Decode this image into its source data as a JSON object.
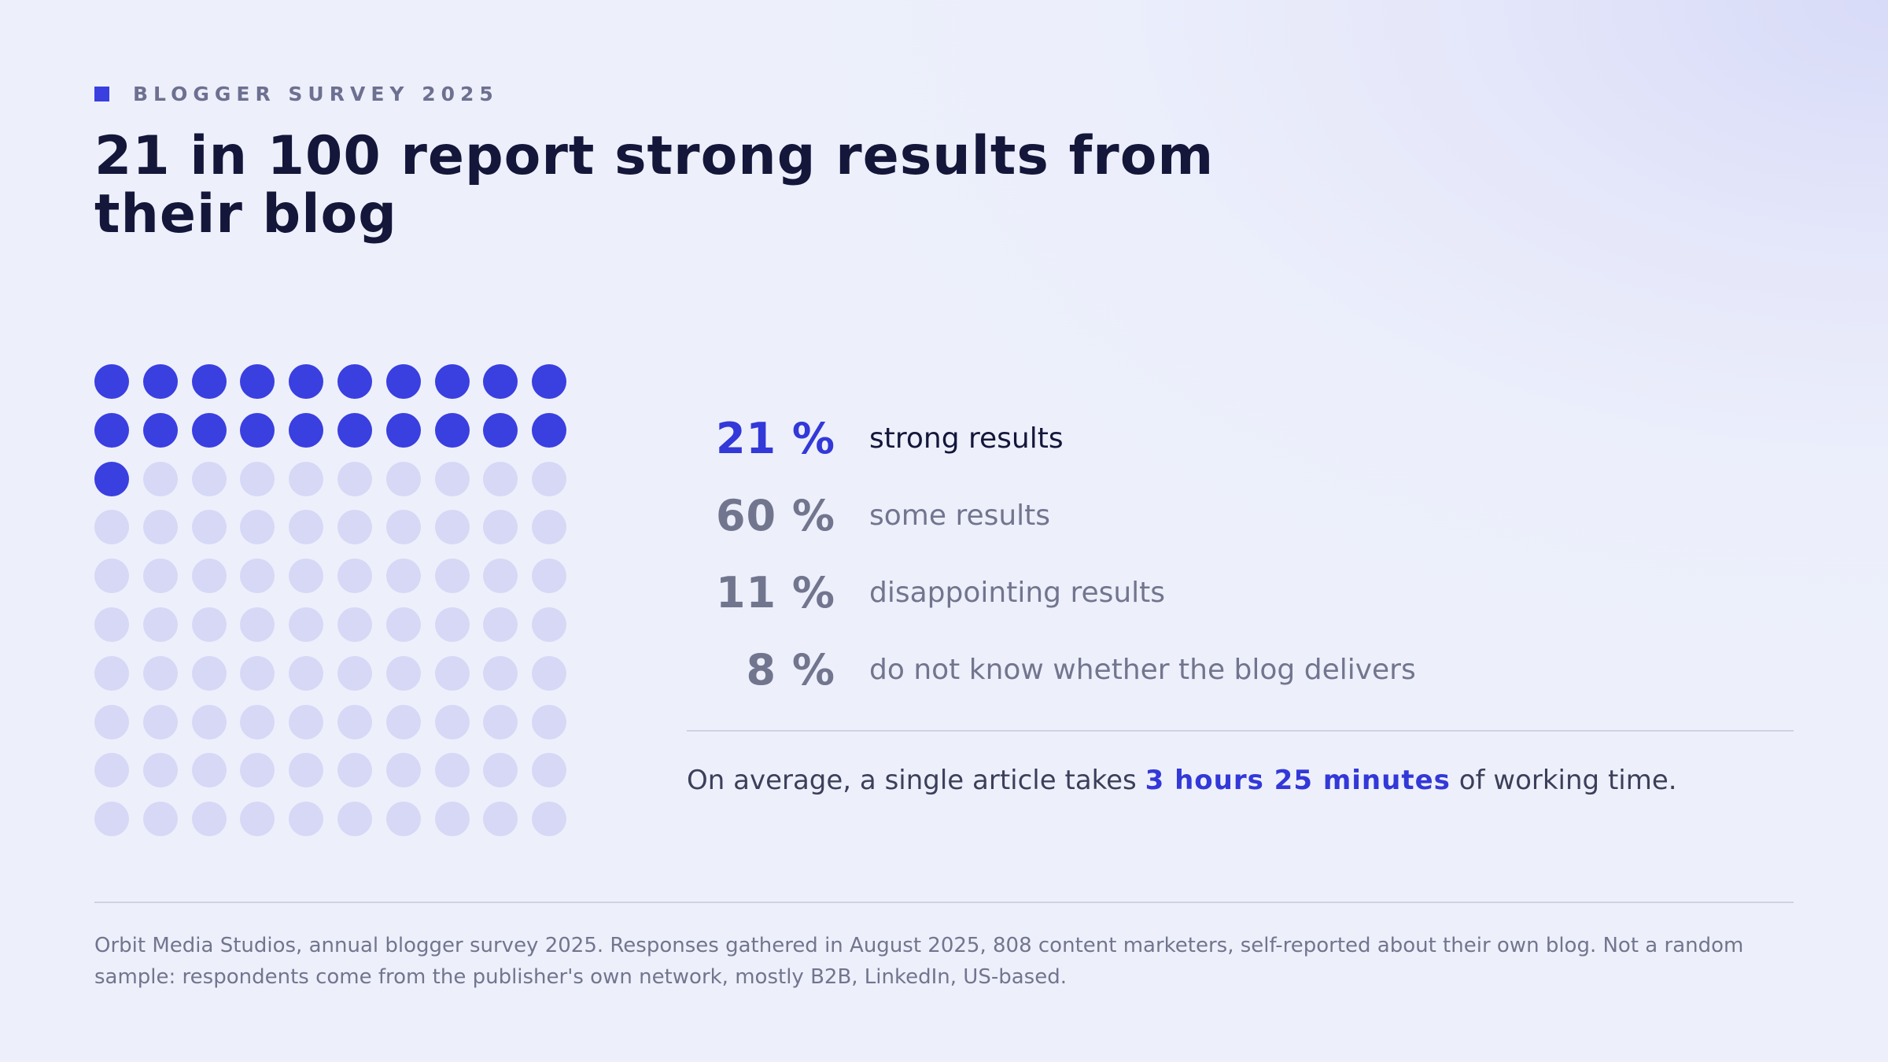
{
  "eyebrow": "BLOGGER SURVEY 2025",
  "title": "21 in 100 report strong results from their blog",
  "chart_data": {
    "type": "waffle",
    "grid": {
      "rows": 10,
      "cols": 10
    },
    "highlighted_count": 21,
    "colors": {
      "highlight": "#3a3fe0",
      "rest": "#d6d8f6"
    },
    "categories": [
      {
        "value": 21,
        "pct_label": "21 %",
        "label": "strong results",
        "highlight": true
      },
      {
        "value": 60,
        "pct_label": "60 %",
        "label": "some results",
        "highlight": false
      },
      {
        "value": 11,
        "pct_label": "11 %",
        "label": "disappointing results",
        "highlight": false
      },
      {
        "value": 8,
        "pct_label": "8 %",
        "label": "do not know whether the blog delivers",
        "highlight": false
      }
    ]
  },
  "average": {
    "prefix": "On average, a single article takes",
    "value": "3 hours 25 minutes",
    "suffix": "of working time."
  },
  "source": "Orbit Media Studios, annual blogger survey 2025. Responses gathered in August 2025, 808 content marketers, self-reported about their own blog. Not a random sample: respondents come from the publisher's own network, mostly B2B, LinkedIn, US-based.",
  "colors": {
    "accent": "#3a3fe0",
    "heading": "#14163a",
    "muted": "#72758e"
  }
}
